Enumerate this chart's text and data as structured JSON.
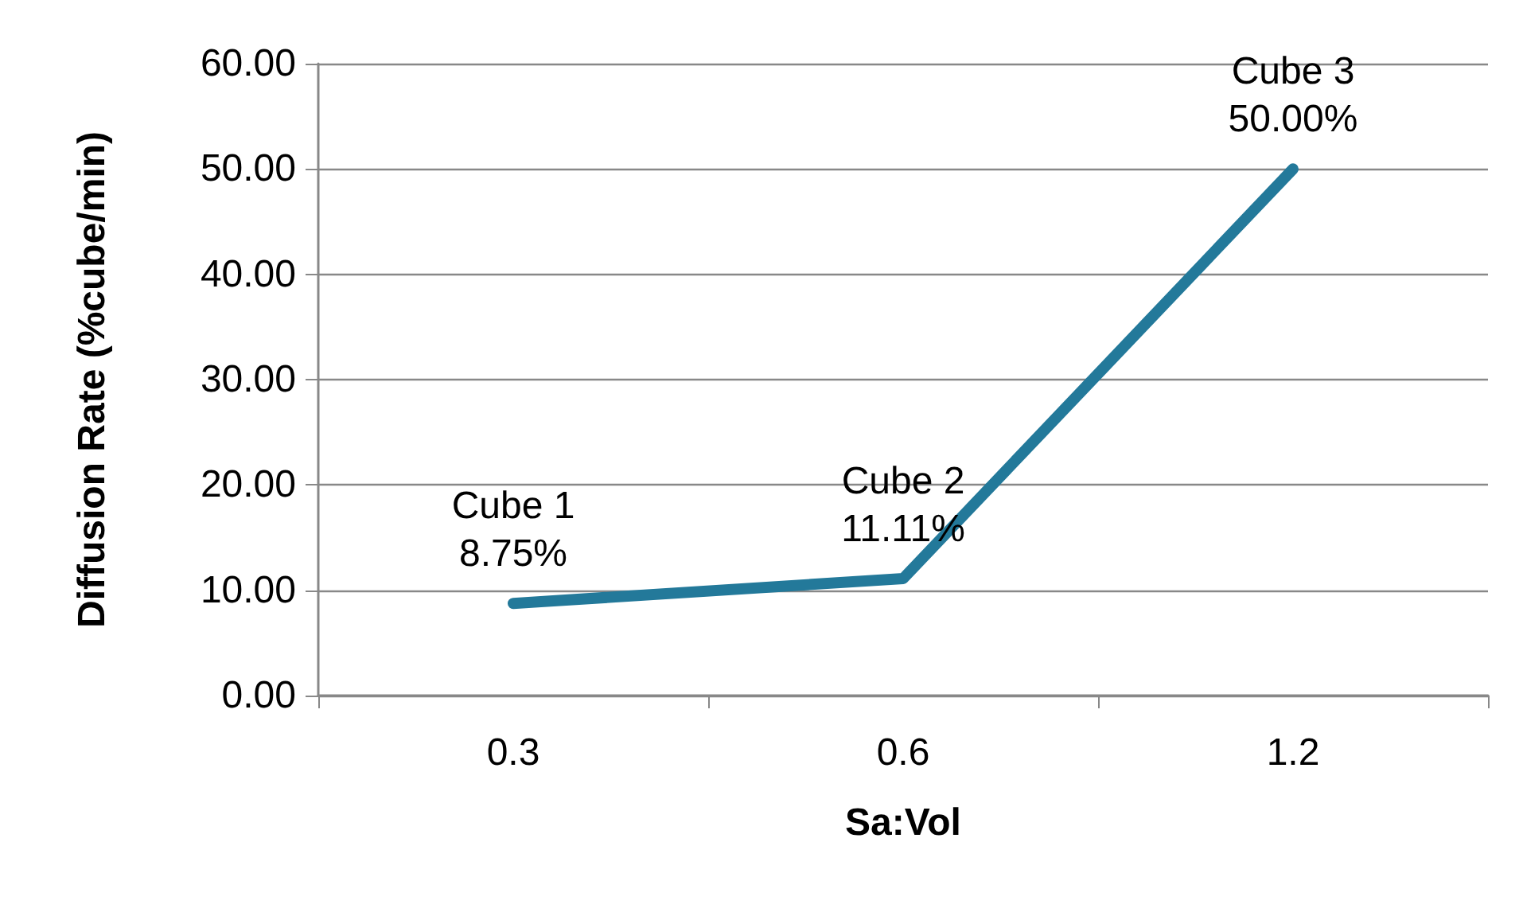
{
  "chart_data": {
    "type": "line",
    "xlabel": "Sa:Vol",
    "ylabel": "Diffusion Rate (%cube/min)",
    "categories": [
      "0.3",
      "0.6",
      "1.2"
    ],
    "series": [
      {
        "color": "#23799a",
        "values": [
          8.75,
          11.11,
          50.0
        ],
        "value_labels": [
          "Cube 1\n8.75%",
          "Cube 2\n11.11%",
          "Cube 3\n50.00%"
        ]
      }
    ],
    "ylim": [
      0,
      60
    ],
    "yticks": [
      {
        "value": 0,
        "label": "0.00"
      },
      {
        "value": 10,
        "label": "10.00"
      },
      {
        "value": 20,
        "label": "20.00"
      },
      {
        "value": 30,
        "label": "30.00"
      },
      {
        "value": 40,
        "label": "40.00"
      },
      {
        "value": 50,
        "label": "50.00"
      },
      {
        "value": 60,
        "label": "60.00"
      }
    ],
    "grid": "y",
    "marker": "none",
    "line_style": "solid"
  }
}
